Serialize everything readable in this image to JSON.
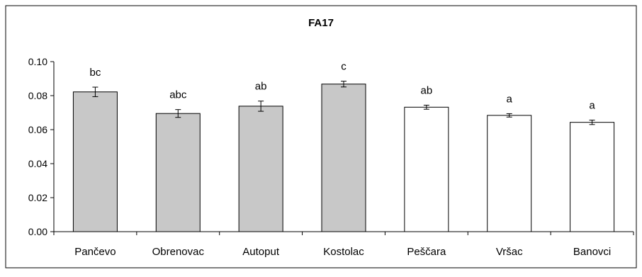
{
  "chart_data": {
    "type": "bar",
    "title": "FA17",
    "xlabel": "",
    "ylabel": "",
    "ylim": [
      0,
      0.1
    ],
    "yticks": [
      "0.00",
      "0.02",
      "0.04",
      "0.06",
      "0.08",
      "0.10"
    ],
    "grid": false,
    "legend": "none",
    "categories": [
      "Pančevo",
      "Obrenovac",
      "Autoput",
      "Kostolac",
      "Peščara",
      "Vršac",
      "Banovci"
    ],
    "values": [
      0.0822,
      0.0695,
      0.0738,
      0.0868,
      0.0732,
      0.0684,
      0.0643
    ],
    "errors": [
      0.0028,
      0.0023,
      0.003,
      0.0017,
      0.0012,
      0.001,
      0.0013
    ],
    "labels": [
      "bc",
      "abc",
      "ab",
      "c",
      "ab",
      "a",
      "a"
    ],
    "fill_colors": [
      "#c8c8c8",
      "#c8c8c8",
      "#c8c8c8",
      "#c8c8c8",
      "#ffffff",
      "#ffffff",
      "#ffffff"
    ],
    "stroke_color": "#000000"
  }
}
